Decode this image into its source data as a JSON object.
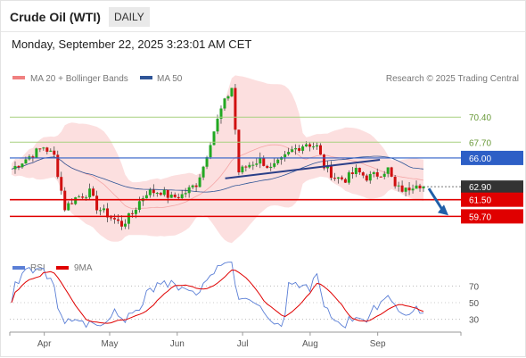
{
  "header": {
    "title": "Crude Oil (WTI)",
    "period": "DAILY",
    "timestamp": "Monday, September 22, 2025 3:23:01 AM CET"
  },
  "legend": {
    "ma20_label": "MA 20 + Bollinger Bands",
    "ma50_label": "MA 50",
    "ma20_color": "#f08080",
    "ma50_color": "#2f5597",
    "credit": "Research © 2025 Trading Central"
  },
  "rsi_legend": {
    "rsi_label": "RSI",
    "ma9_label": "9MA",
    "rsi_color": "#5b7fd6",
    "ma9_color": "#e00000"
  },
  "colors": {
    "up": "#22a822",
    "down": "#d01010",
    "band": "#fcd9d9",
    "resistance": "#a8d080",
    "pivot": "#2d5fc6",
    "support": "#e00000",
    "current": "#333333"
  },
  "chart_data": [
    {
      "type": "candlestick",
      "x_ticks": [
        "Apr",
        "May",
        "Jun",
        "Jul",
        "Aug",
        "Sep"
      ],
      "y_range": [
        55.5,
        73.5
      ],
      "levels": [
        {
          "value": "70.40",
          "kind": "resistance"
        },
        {
          "value": "67.70",
          "kind": "resistance"
        },
        {
          "value": "66.00",
          "kind": "pivot"
        },
        {
          "value": "62.90",
          "kind": "current"
        },
        {
          "value": "61.50",
          "kind": "support"
        },
        {
          "value": "59.70",
          "kind": "support"
        }
      ],
      "trendlines": [
        {
          "from": [
            "2025-06-23",
            63.8
          ],
          "to": [
            "2025-09-02",
            65.8
          ]
        }
      ],
      "forecast_arrow": {
        "from": [
          "2025-09-22",
          62.9
        ],
        "to": [
          "2025-10-01",
          60.0
        ]
      }
    },
    {
      "type": "line",
      "y_ticks": [
        70,
        50,
        30
      ],
      "y_range": [
        20,
        80
      ],
      "series": [
        {
          "name": "RSI"
        },
        {
          "name": "9MA"
        }
      ]
    }
  ]
}
